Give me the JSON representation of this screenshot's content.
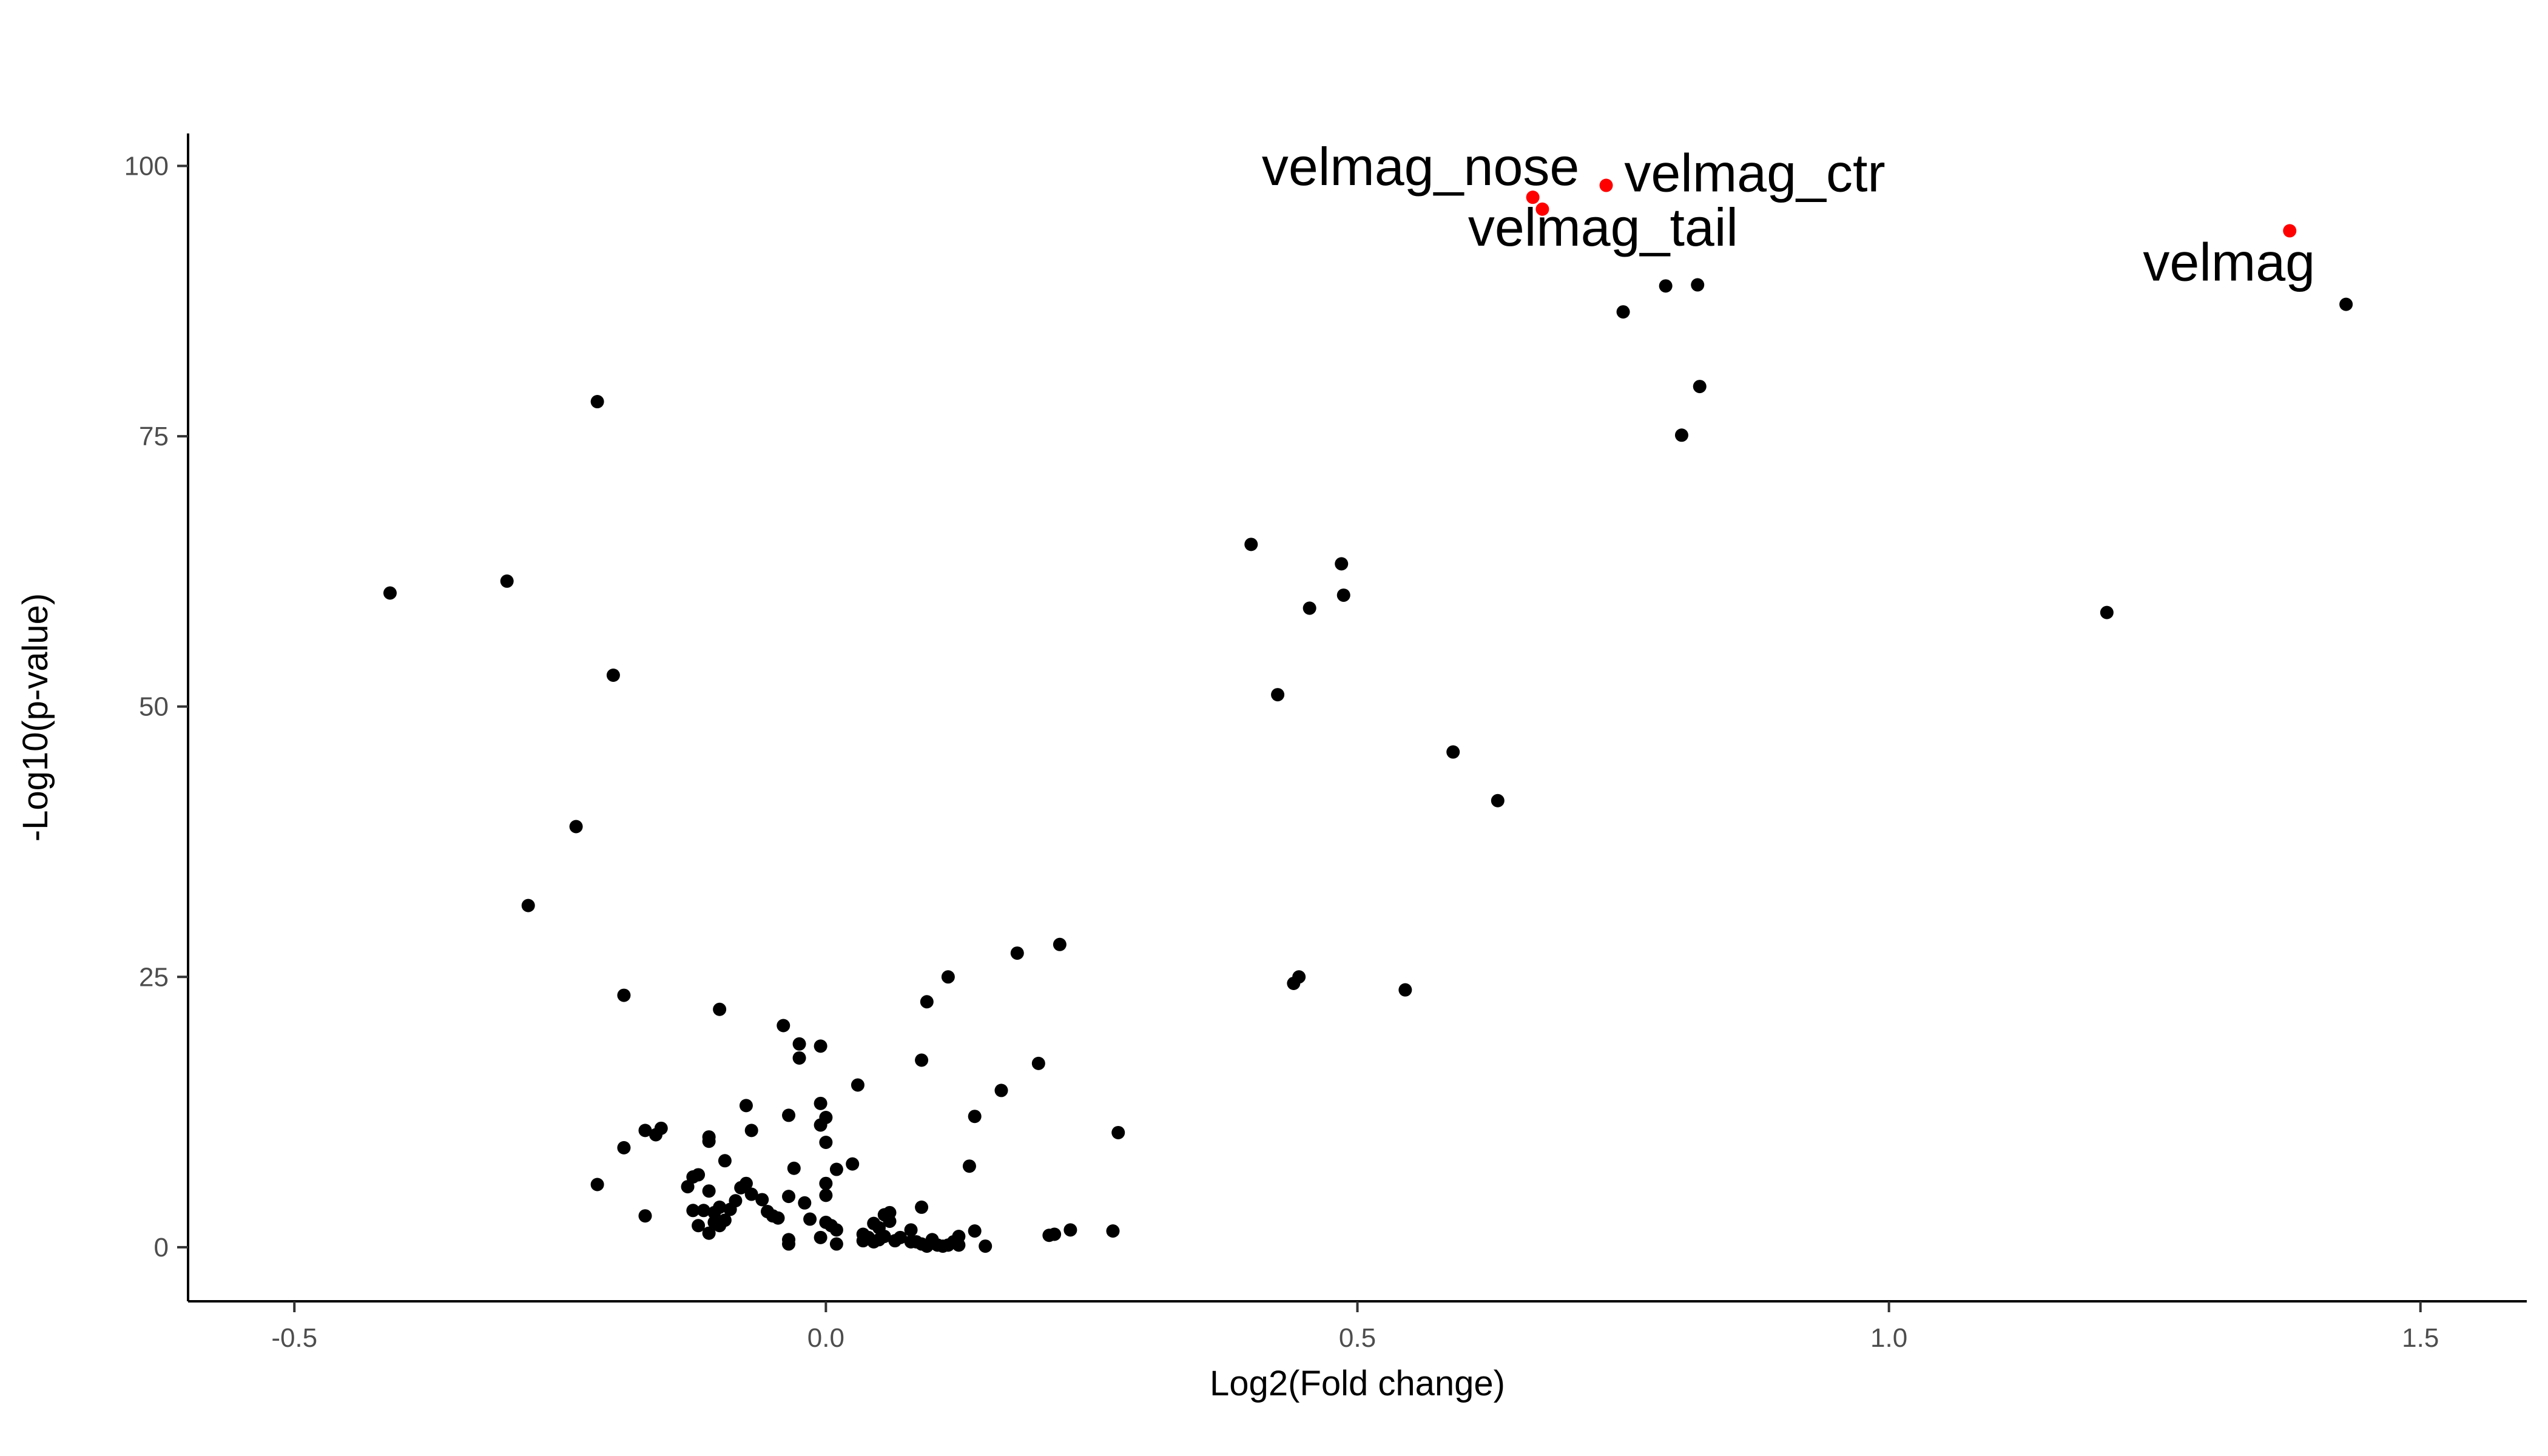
{
  "chart_data": {
    "type": "scatter",
    "title": "",
    "xlabel": "Log2(Fold change)",
    "ylabel": "-Log10(p-value)",
    "xlim": [
      -0.6,
      1.6
    ],
    "ylim": [
      -5,
      103
    ],
    "x_ticks": [
      -0.5,
      0.0,
      0.5,
      1.0,
      1.5
    ],
    "x_tick_labels": [
      "-0.5",
      "0.0",
      "0.5",
      "1.0",
      "1.5"
    ],
    "y_ticks": [
      0,
      25,
      50,
      75,
      100
    ],
    "y_tick_labels": [
      "0",
      "25",
      "50",
      "75",
      "100"
    ],
    "grid": false,
    "legend": "none",
    "colors": {
      "default": "#000000",
      "highlight": "#ff0000"
    },
    "highlighted_points": [
      {
        "label": "velmag_nose",
        "x": 0.665,
        "y": 97.1
      },
      {
        "label": "velmag_tail",
        "x": 0.674,
        "y": 96.0
      },
      {
        "label": "velmag_ctr",
        "x": 0.734,
        "y": 98.2
      },
      {
        "label": "velmag",
        "x": 1.377,
        "y": 94.0
      }
    ],
    "points": [
      [
        -0.41,
        60.5
      ],
      [
        -0.3,
        61.6
      ],
      [
        -0.28,
        31.6
      ],
      [
        -0.235,
        38.9
      ],
      [
        -0.215,
        78.2
      ],
      [
        -0.2,
        52.9
      ],
      [
        -0.19,
        23.3
      ],
      [
        -0.19,
        9.2
      ],
      [
        -0.215,
        5.8
      ],
      [
        -0.17,
        10.8
      ],
      [
        -0.17,
        2.9
      ],
      [
        -0.16,
        10.4
      ],
      [
        -0.155,
        11.0
      ],
      [
        -0.13,
        5.6
      ],
      [
        -0.125,
        6.5
      ],
      [
        -0.125,
        3.4
      ],
      [
        -0.12,
        6.7
      ],
      [
        -0.12,
        2.0
      ],
      [
        -0.115,
        3.4
      ],
      [
        -0.11,
        10.2
      ],
      [
        -0.11,
        9.8
      ],
      [
        -0.11,
        5.2
      ],
      [
        -0.11,
        1.3
      ],
      [
        -0.105,
        3.2
      ],
      [
        -0.105,
        2.3
      ],
      [
        -0.1,
        3.7
      ],
      [
        -0.1,
        2.0
      ],
      [
        -0.095,
        8.0
      ],
      [
        -0.095,
        2.5
      ],
      [
        -0.09,
        3.5
      ],
      [
        -0.085,
        4.3
      ],
      [
        -0.08,
        5.5
      ],
      [
        -0.075,
        13.1
      ],
      [
        -0.075,
        5.9
      ],
      [
        -0.07,
        4.9
      ],
      [
        -0.07,
        10.8
      ],
      [
        -0.1,
        22.0
      ],
      [
        -0.06,
        4.4
      ],
      [
        -0.055,
        3.3
      ],
      [
        -0.05,
        2.9
      ],
      [
        -0.045,
        2.7
      ],
      [
        -0.04,
        20.5
      ],
      [
        -0.035,
        12.2
      ],
      [
        -0.035,
        0.7
      ],
      [
        -0.035,
        0.3
      ],
      [
        -0.035,
        4.7
      ],
      [
        -0.03,
        7.3
      ],
      [
        -0.025,
        18.8
      ],
      [
        -0.025,
        17.5
      ],
      [
        -0.02,
        4.1
      ],
      [
        -0.015,
        2.6
      ],
      [
        -0.005,
        11.3
      ],
      [
        -0.005,
        18.6
      ],
      [
        -0.005,
        13.3
      ],
      [
        -0.005,
        0.9
      ],
      [
        0.0,
        2.3
      ],
      [
        0.0,
        12.0
      ],
      [
        0.0,
        9.7
      ],
      [
        0.0,
        5.9
      ],
      [
        0.0,
        4.8
      ],
      [
        0.005,
        2.0
      ],
      [
        0.01,
        1.6
      ],
      [
        0.01,
        0.3
      ],
      [
        0.01,
        7.2
      ],
      [
        0.025,
        7.7
      ],
      [
        0.03,
        15.0
      ],
      [
        0.035,
        0.6
      ],
      [
        0.035,
        1.2
      ],
      [
        0.04,
        0.9
      ],
      [
        0.045,
        0.5
      ],
      [
        0.045,
        2.2
      ],
      [
        0.05,
        1.8
      ],
      [
        0.05,
        0.7
      ],
      [
        0.055,
        3.0
      ],
      [
        0.055,
        1.0
      ],
      [
        0.06,
        3.2
      ],
      [
        0.06,
        2.4
      ],
      [
        0.065,
        0.6
      ],
      [
        0.07,
        0.9
      ],
      [
        0.08,
        0.5
      ],
      [
        0.08,
        1.6
      ],
      [
        0.085,
        0.5
      ],
      [
        0.09,
        0.3
      ],
      [
        0.09,
        17.3
      ],
      [
        0.09,
        3.7
      ],
      [
        0.095,
        22.7
      ],
      [
        0.095,
        0.1
      ],
      [
        0.1,
        0.4
      ],
      [
        0.1,
        0.7
      ],
      [
        0.105,
        0.2
      ],
      [
        0.11,
        0.1
      ],
      [
        0.115,
        25.0
      ],
      [
        0.115,
        0.2
      ],
      [
        0.12,
        0.5
      ],
      [
        0.125,
        1.0
      ],
      [
        0.125,
        0.2
      ],
      [
        0.135,
        7.5
      ],
      [
        0.14,
        1.5
      ],
      [
        0.14,
        12.1
      ],
      [
        0.15,
        0.1
      ],
      [
        0.165,
        14.5
      ],
      [
        0.18,
        27.2
      ],
      [
        0.2,
        17.0
      ],
      [
        0.21,
        1.1
      ],
      [
        0.215,
        1.2
      ],
      [
        0.22,
        28.0
      ],
      [
        0.23,
        1.6
      ],
      [
        0.27,
        1.5
      ],
      [
        0.275,
        10.6
      ],
      [
        0.4,
        65.0
      ],
      [
        0.425,
        51.1
      ],
      [
        0.44,
        24.4
      ],
      [
        0.445,
        25.0
      ],
      [
        0.455,
        59.1
      ],
      [
        0.485,
        63.2
      ],
      [
        0.487,
        60.3
      ],
      [
        0.545,
        23.8
      ],
      [
        0.59,
        45.8
      ],
      [
        0.632,
        41.3
      ],
      [
        0.75,
        86.5
      ],
      [
        0.79,
        88.9
      ],
      [
        0.805,
        75.1
      ],
      [
        0.82,
        89.0
      ],
      [
        0.822,
        79.6
      ],
      [
        1.205,
        58.7
      ],
      [
        1.43,
        87.2
      ]
    ]
  }
}
